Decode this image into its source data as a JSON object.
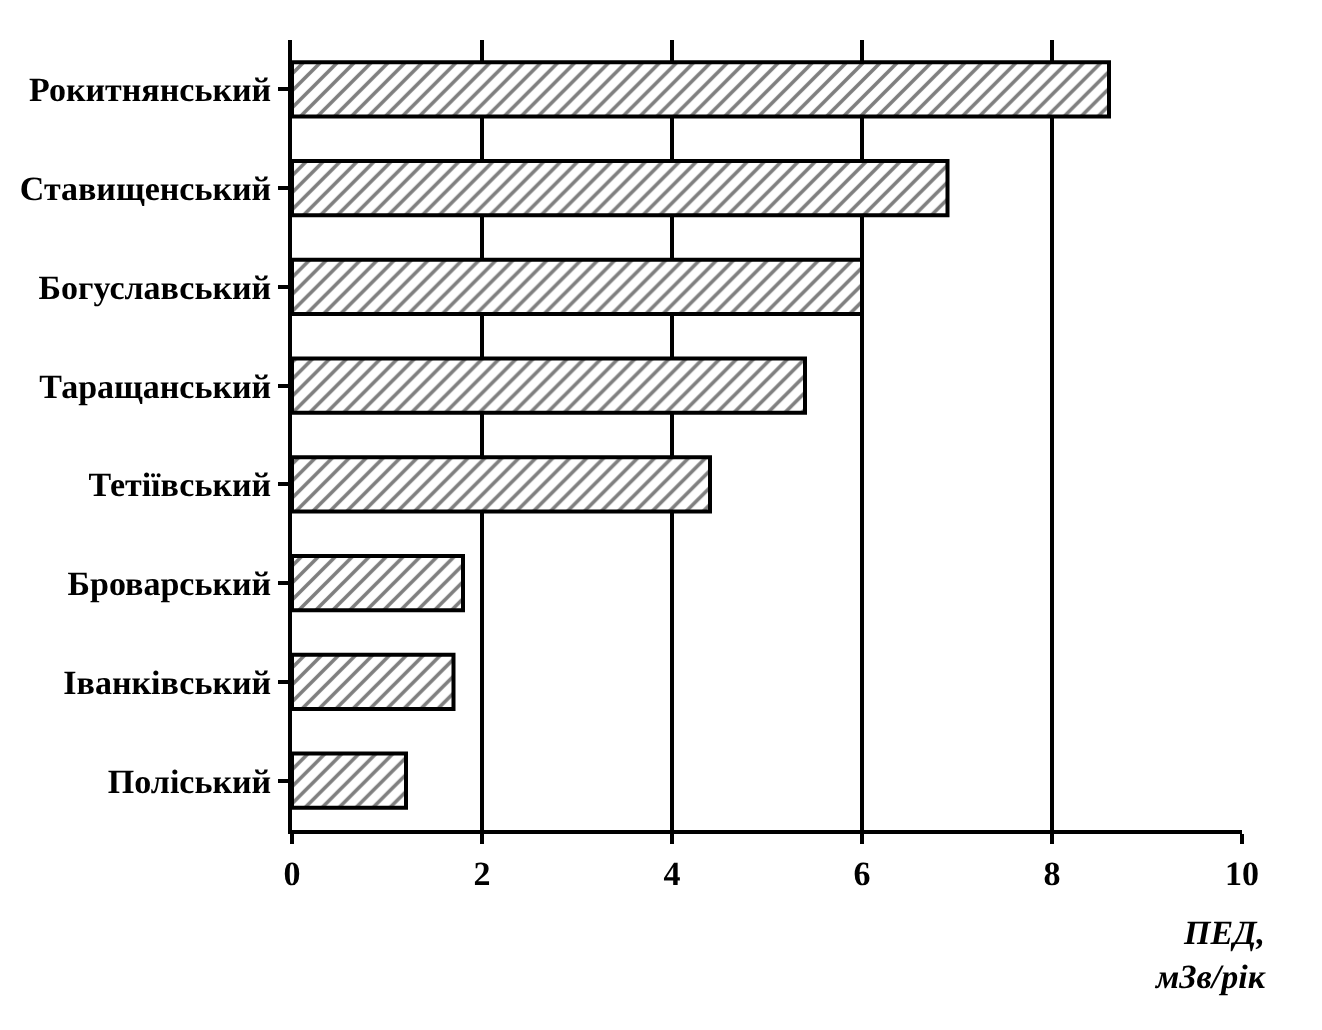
{
  "chart_data": {
    "type": "bar",
    "orientation": "horizontal",
    "xlabel": "ПЕД,\nмЗв/рік",
    "categories": [
      "Рокитнянський",
      "Ставищенський",
      "Богуславський",
      "Таращанський",
      "Тетіївський",
      "Броварський",
      "Іванківський",
      "Поліський"
    ],
    "values": [
      8.6,
      6.9,
      6.0,
      5.4,
      4.4,
      1.8,
      1.7,
      1.2
    ],
    "color": "#000000",
    "xlim": [
      0,
      10
    ],
    "xticks": [
      0,
      2,
      4,
      6,
      8,
      10
    ],
    "grid": "x"
  }
}
